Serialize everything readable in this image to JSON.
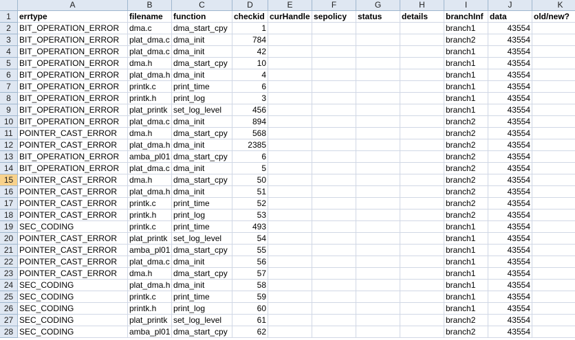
{
  "columns": [
    "A",
    "B",
    "C",
    "D",
    "E",
    "F",
    "G",
    "H",
    "I",
    "J",
    "K"
  ],
  "selected_row": "15",
  "headers": [
    "errtype",
    "filename",
    "function",
    "checkid",
    "curHandle",
    "sepolicy",
    "status",
    "details",
    "branchInf",
    "data",
    "old/new?"
  ],
  "rows": [
    {
      "n": "2",
      "errtype": "BIT_OPERATION_ERROR",
      "filename": "dma.c",
      "function": "dma_start_cpy",
      "checkid": "1",
      "branch": "branch1",
      "data": "43554"
    },
    {
      "n": "3",
      "errtype": "BIT_OPERATION_ERROR",
      "filename": "plat_dma.c",
      "function": "dma_init",
      "checkid": "784",
      "branch": "branch2",
      "data": "43554"
    },
    {
      "n": "4",
      "errtype": "BIT_OPERATION_ERROR",
      "filename": "plat_dma.c",
      "function": "dma_init",
      "checkid": "42",
      "branch": "branch1",
      "data": "43554"
    },
    {
      "n": "5",
      "errtype": "BIT_OPERATION_ERROR",
      "filename": "dma.h",
      "function": "dma_start_cpy",
      "checkid": "10",
      "branch": "branch1",
      "data": "43554"
    },
    {
      "n": "6",
      "errtype": "BIT_OPERATION_ERROR",
      "filename": "plat_dma.h",
      "function": "dma_init",
      "checkid": "4",
      "branch": "branch1",
      "data": "43554"
    },
    {
      "n": "7",
      "errtype": "BIT_OPERATION_ERROR",
      "filename": "printk.c",
      "function": "print_time",
      "checkid": "6",
      "branch": "branch1",
      "data": "43554"
    },
    {
      "n": "8",
      "errtype": "BIT_OPERATION_ERROR",
      "filename": "printk.h",
      "function": "print_log",
      "checkid": "3",
      "branch": "branch1",
      "data": "43554"
    },
    {
      "n": "9",
      "errtype": "BIT_OPERATION_ERROR",
      "filename": "plat_printk",
      "function": "set_log_level",
      "checkid": "456",
      "branch": "branch1",
      "data": "43554"
    },
    {
      "n": "10",
      "errtype": "BIT_OPERATION_ERROR",
      "filename": "plat_dma.c",
      "function": "dma_init",
      "checkid": "894",
      "branch": "branch2",
      "data": "43554"
    },
    {
      "n": "11",
      "errtype": "POINTER_CAST_ERROR",
      "filename": "dma.h",
      "function": "dma_start_cpy",
      "checkid": "568",
      "branch": "branch2",
      "data": "43554"
    },
    {
      "n": "12",
      "errtype": "POINTER_CAST_ERROR",
      "filename": "plat_dma.h",
      "function": "dma_init",
      "checkid": "2385",
      "branch": "branch2",
      "data": "43554"
    },
    {
      "n": "13",
      "errtype": "BIT_OPERATION_ERROR",
      "filename": "amba_pl01",
      "function": "dma_start_cpy",
      "checkid": "6",
      "branch": "branch2",
      "data": "43554"
    },
    {
      "n": "14",
      "errtype": "BIT_OPERATION_ERROR",
      "filename": "plat_dma.c",
      "function": "dma_init",
      "checkid": "5",
      "branch": "branch2",
      "data": "43554"
    },
    {
      "n": "15",
      "errtype": "POINTER_CAST_ERROR",
      "filename": "dma.h",
      "function": "dma_start_cpy",
      "checkid": "50",
      "branch": "branch2",
      "data": "43554"
    },
    {
      "n": "16",
      "errtype": "POINTER_CAST_ERROR",
      "filename": "plat_dma.h",
      "function": "dma_init",
      "checkid": "51",
      "branch": "branch2",
      "data": "43554"
    },
    {
      "n": "17",
      "errtype": "POINTER_CAST_ERROR",
      "filename": "printk.c",
      "function": "print_time",
      "checkid": "52",
      "branch": "branch2",
      "data": "43554"
    },
    {
      "n": "18",
      "errtype": "POINTER_CAST_ERROR",
      "filename": "printk.h",
      "function": "print_log",
      "checkid": "53",
      "branch": "branch2",
      "data": "43554"
    },
    {
      "n": "19",
      "errtype": "SEC_CODING",
      "filename": "printk.c",
      "function": "print_time",
      "checkid": "493",
      "branch": "branch1",
      "data": "43554"
    },
    {
      "n": "20",
      "errtype": "POINTER_CAST_ERROR",
      "filename": "plat_printk",
      "function": "set_log_level",
      "checkid": "54",
      "branch": "branch1",
      "data": "43554"
    },
    {
      "n": "21",
      "errtype": "POINTER_CAST_ERROR",
      "filename": "amba_pl01",
      "function": "dma_start_cpy",
      "checkid": "55",
      "branch": "branch1",
      "data": "43554"
    },
    {
      "n": "22",
      "errtype": "POINTER_CAST_ERROR",
      "filename": "plat_dma.c",
      "function": "dma_init",
      "checkid": "56",
      "branch": "branch1",
      "data": "43554"
    },
    {
      "n": "23",
      "errtype": "POINTER_CAST_ERROR",
      "filename": "dma.h",
      "function": "dma_start_cpy",
      "checkid": "57",
      "branch": "branch1",
      "data": "43554"
    },
    {
      "n": "24",
      "errtype": "SEC_CODING",
      "filename": "plat_dma.h",
      "function": "dma_init",
      "checkid": "58",
      "branch": "branch1",
      "data": "43554"
    },
    {
      "n": "25",
      "errtype": "SEC_CODING",
      "filename": "printk.c",
      "function": "print_time",
      "checkid": "59",
      "branch": "branch1",
      "data": "43554"
    },
    {
      "n": "26",
      "errtype": "SEC_CODING",
      "filename": "printk.h",
      "function": "print_log",
      "checkid": "60",
      "branch": "branch1",
      "data": "43554"
    },
    {
      "n": "27",
      "errtype": "SEC_CODING",
      "filename": "plat_printk",
      "function": "set_log_level",
      "checkid": "61",
      "branch": "branch2",
      "data": "43554"
    },
    {
      "n": "28",
      "errtype": "SEC_CODING",
      "filename": "amba_pl01",
      "function": "dma_start_cpy",
      "checkid": "62",
      "branch": "branch2",
      "data": "43554"
    }
  ]
}
